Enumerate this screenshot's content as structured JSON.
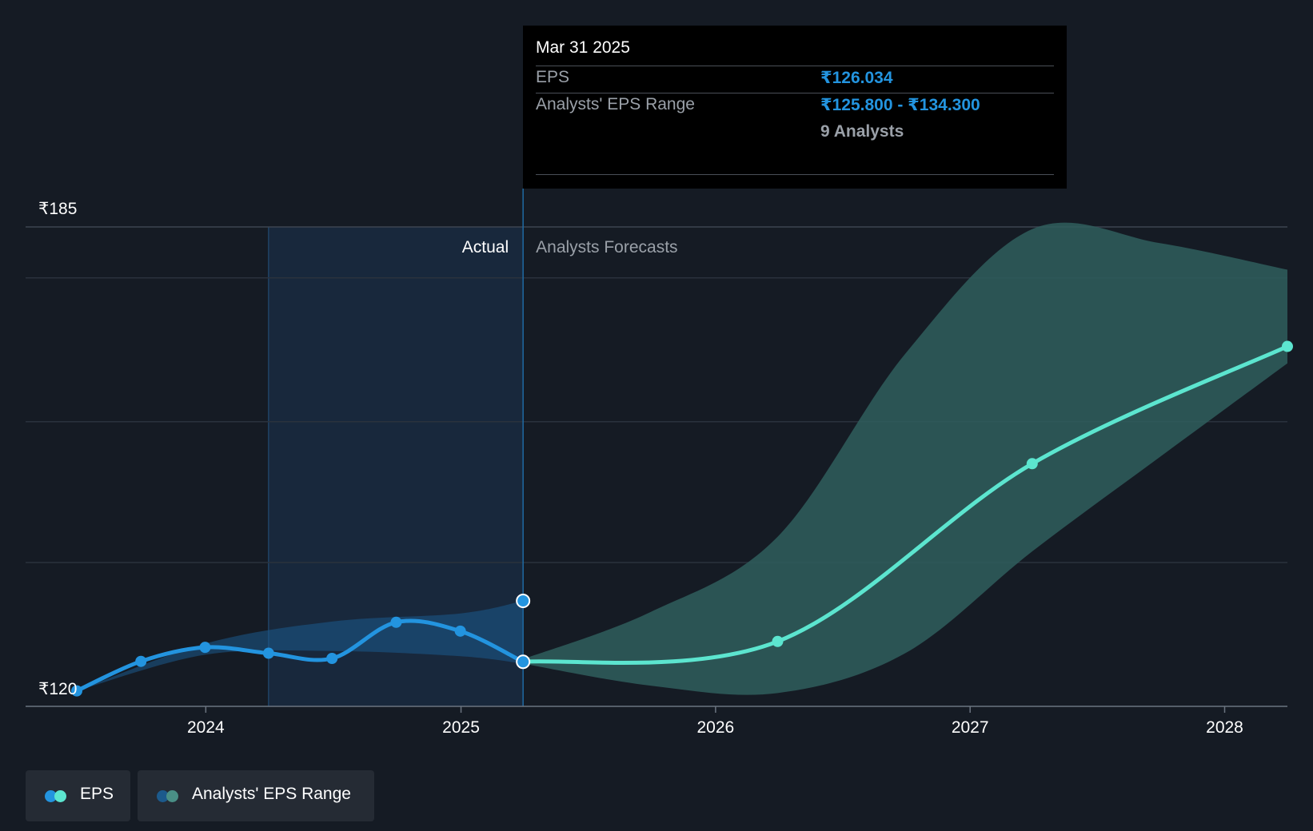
{
  "colors": {
    "background": "#151b24",
    "actual": "#2394df",
    "forecast": "#5ce5cf",
    "forecast_band": "#2f5e5d",
    "actual_band": "#1c5a8c",
    "grid": "#2f3742",
    "muted_text": "#9aa0a8"
  },
  "tooltip": {
    "date": "Mar 31 2025",
    "eps_label": "EPS",
    "eps_value": "₹126.034",
    "range_label": "Analysts' EPS Range",
    "range_value": "₹125.800 - ₹134.300",
    "analysts": "9 Analysts"
  },
  "labels": {
    "actual": "Actual",
    "forecast": "Analysts Forecasts"
  },
  "legend": {
    "eps": "EPS",
    "range": "Analysts' EPS Range"
  },
  "chart_data": {
    "type": "line",
    "ylim": [
      120,
      185
    ],
    "y_tick_labels": [
      "₹185",
      "₹120"
    ],
    "x_tick_labels": [
      "2024",
      "2025",
      "2026",
      "2027",
      "2028"
    ],
    "xlim": [
      "2023-06-30",
      "2028-03-31"
    ],
    "divider_date": "2025-03-31",
    "shaded_start_date": "2024-03-31",
    "series": [
      {
        "name": "EPS",
        "kind": "actual",
        "points": [
          {
            "x": "2023-06-30",
            "y": 122.1
          },
          {
            "x": "2023-09-30",
            "y": 126.1
          },
          {
            "x": "2023-12-31",
            "y": 128.0
          },
          {
            "x": "2024-03-31",
            "y": 127.2
          },
          {
            "x": "2024-06-30",
            "y": 126.5
          },
          {
            "x": "2024-09-30",
            "y": 131.4
          },
          {
            "x": "2024-12-31",
            "y": 130.2
          },
          {
            "x": "2025-03-31",
            "y": 126.034
          }
        ]
      },
      {
        "name": "EPS",
        "kind": "forecast",
        "points": [
          {
            "x": "2025-03-31",
            "y": 126.034
          },
          {
            "x": "2026-03-31",
            "y": 128.8
          },
          {
            "x": "2027-03-31",
            "y": 152.9
          },
          {
            "x": "2028-03-31",
            "y": 168.8
          }
        ]
      },
      {
        "name": "Analysts' EPS Range",
        "kind": "forecast_range",
        "points": [
          {
            "x": "2025-03-31",
            "low": 125.8,
            "high": 126.4
          },
          {
            "x": "2025-09-30",
            "low": 122.8,
            "high": 132.8
          },
          {
            "x": "2026-03-31",
            "low": 121.8,
            "high": 143.0
          },
          {
            "x": "2026-09-30",
            "low": 127.2,
            "high": 167.8
          },
          {
            "x": "2027-03-31",
            "low": 141.0,
            "high": 184.7
          },
          {
            "x": "2027-09-30",
            "low": 153.8,
            "high": 182.8
          },
          {
            "x": "2028-03-31",
            "low": 166.5,
            "high": 179.2
          }
        ]
      },
      {
        "name": "Analysts' EPS Range",
        "kind": "actual_range",
        "points": [
          {
            "x": "2023-06-30",
            "low": 122.1,
            "high": 122.1
          },
          {
            "x": "2023-12-31",
            "low": 127.0,
            "high": 128.5
          },
          {
            "x": "2024-06-30",
            "low": 127.5,
            "high": 131.5
          },
          {
            "x": "2024-12-31",
            "low": 126.8,
            "high": 132.6
          },
          {
            "x": "2025-03-31",
            "low": 125.8,
            "high": 134.3
          }
        ]
      }
    ]
  }
}
